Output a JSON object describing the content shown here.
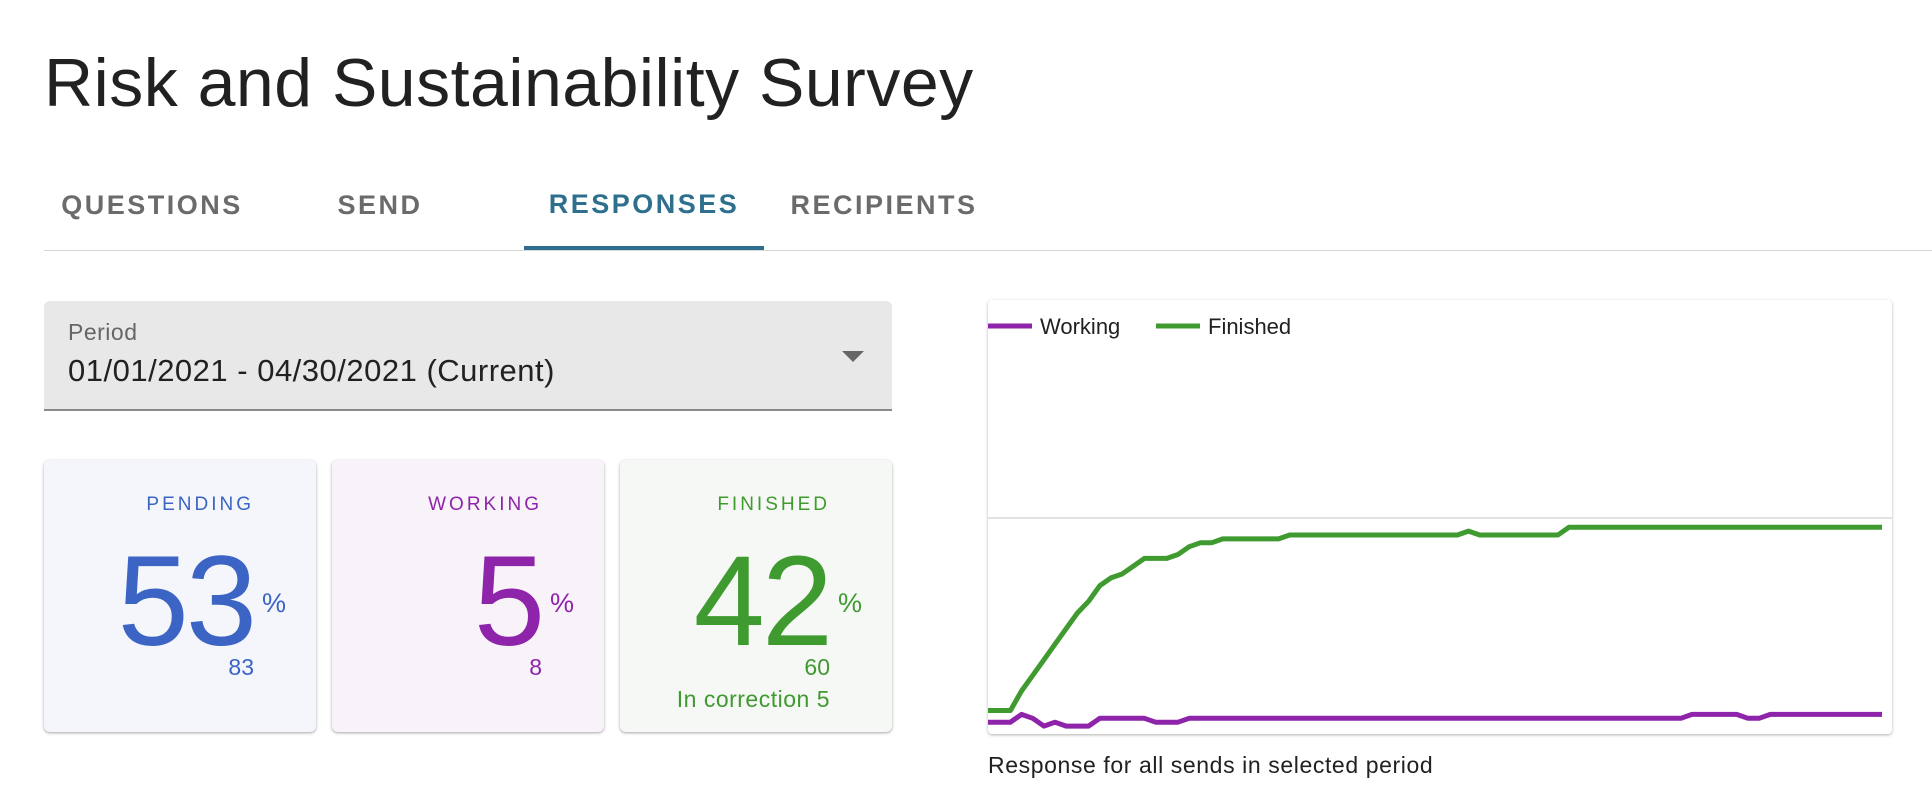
{
  "title": "Risk and Sustainability Survey",
  "tabs": [
    {
      "label": "QUESTIONS",
      "active": false
    },
    {
      "label": "SEND",
      "active": false
    },
    {
      "label": "RESPONSES",
      "active": true
    },
    {
      "label": "RECIPIENTS",
      "active": false
    }
  ],
  "period": {
    "label": "Period",
    "value": "01/01/2021 - 04/30/2021 (Current)"
  },
  "cards": {
    "pending": {
      "label": "PENDING",
      "percent": "53",
      "unit": "%",
      "count": "83",
      "color": "#3b64c4",
      "bg": "#f4f6fb"
    },
    "working": {
      "label": "WORKING",
      "percent": "5",
      "unit": "%",
      "count": "8",
      "color": "#8e24aa",
      "bg": "#f8f3f9"
    },
    "finished": {
      "label": "FINISHED",
      "percent": "42",
      "unit": "%",
      "count": "60",
      "extra": "In correction 5",
      "color": "#3f9a30",
      "bg": "#f5f8f4"
    }
  },
  "chart_caption": "Response for all sends in selected period",
  "chart_data": {
    "type": "line",
    "legend_position": "top-left",
    "ylim": [
      0,
      100
    ],
    "x": [
      0,
      1,
      2,
      3,
      4,
      5,
      6,
      7,
      8,
      9,
      10,
      11,
      12,
      13,
      14,
      15,
      16,
      17,
      18,
      19,
      20,
      21,
      22,
      23,
      24,
      25,
      26,
      27,
      28,
      29,
      30,
      31,
      32,
      33,
      34,
      35,
      36,
      37,
      38,
      39,
      40,
      41,
      42,
      43,
      44,
      45,
      46,
      47,
      48,
      49,
      50,
      51,
      52,
      53,
      54,
      55,
      56,
      57,
      58,
      59,
      60,
      61,
      62,
      63,
      64,
      65,
      66,
      67,
      68,
      69,
      70,
      71,
      72,
      73,
      74,
      75,
      76,
      77,
      78,
      79,
      80
    ],
    "series": [
      {
        "name": "Working",
        "color": "#8e24aa",
        "values": [
          2,
          2,
          2,
          4,
          3,
          1,
          2,
          1,
          1,
          1,
          3,
          3,
          3,
          3,
          3,
          2,
          2,
          2,
          3,
          3,
          3,
          3,
          3,
          3,
          3,
          3,
          3,
          3,
          3,
          3,
          3,
          3,
          3,
          3,
          3,
          3,
          3,
          3,
          3,
          3,
          3,
          3,
          3,
          3,
          3,
          3,
          3,
          3,
          3,
          3,
          3,
          3,
          3,
          3,
          3,
          3,
          3,
          3,
          3,
          3,
          3,
          3,
          3,
          4,
          4,
          4,
          4,
          4,
          3,
          3,
          4,
          4,
          4,
          4,
          4,
          4,
          4,
          4,
          4,
          4,
          4
        ]
      },
      {
        "name": "Finished",
        "color": "#3f9a30",
        "values": [
          5,
          5,
          5,
          10,
          14,
          18,
          22,
          26,
          30,
          33,
          37,
          39,
          40,
          42,
          44,
          44,
          44,
          45,
          47,
          48,
          48,
          49,
          49,
          49,
          49,
          49,
          49,
          50,
          50,
          50,
          50,
          50,
          50,
          50,
          50,
          50,
          50,
          50,
          50,
          50,
          50,
          50,
          50,
          51,
          50,
          50,
          50,
          50,
          50,
          50,
          50,
          50,
          52,
          52,
          52,
          52,
          52,
          52,
          52,
          52,
          52,
          52,
          52,
          52,
          52,
          52,
          52,
          52,
          52,
          52,
          52,
          52,
          52,
          52,
          52,
          52,
          52,
          52,
          52,
          52,
          52
        ]
      }
    ]
  }
}
